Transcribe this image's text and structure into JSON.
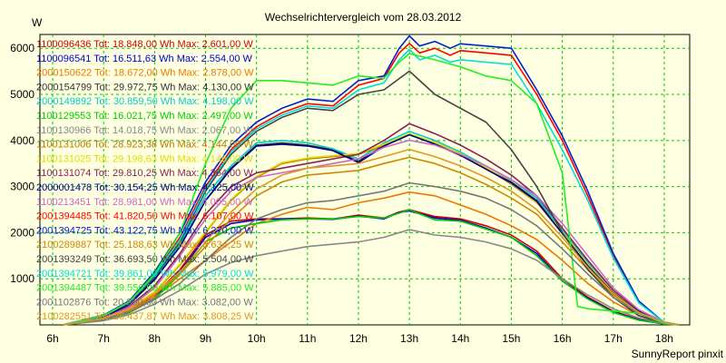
{
  "chart_data": {
    "type": "line",
    "title": "Wechselrichtervergleich vom 28.03.2012",
    "ylabel": "W",
    "footer": "SunnyReport pinxit",
    "xlim": [
      5.75,
      18.5
    ],
    "ylim": [
      0,
      6300
    ],
    "x_ticks": [
      6,
      7,
      8,
      9,
      10,
      11,
      12,
      13,
      14,
      15,
      16,
      17,
      18
    ],
    "x_tick_labels": [
      "6h",
      "7h",
      "8h",
      "9h",
      "10h",
      "11h",
      "12h",
      "13h",
      "14h",
      "15h",
      "16h",
      "17h",
      "18h"
    ],
    "y_ticks": [
      1000,
      2000,
      3000,
      4000,
      5000,
      6000
    ],
    "y_tick_labels": [
      "1000",
      "2000",
      "3000",
      "4000",
      "5000",
      "6000"
    ],
    "grid": true,
    "legend": "left",
    "series": [
      {
        "name": "1100096436 Tot: 18.848,00 Wh Max: 2.601,00 W",
        "color": "#cc0000",
        "x": [
          6.2,
          7,
          7.5,
          8,
          8.5,
          9,
          9.5,
          10,
          10.5,
          11,
          11.5,
          12,
          12.5,
          12.8,
          13,
          13.5,
          14,
          14.5,
          15,
          15.5,
          16,
          16.5,
          17,
          17.5,
          18,
          18.3
        ],
        "y": [
          0,
          120,
          300,
          650,
          1200,
          1950,
          2250,
          2300,
          2300,
          2320,
          2300,
          2380,
          2320,
          2450,
          2500,
          2350,
          2300,
          2150,
          1950,
          1600,
          1000,
          600,
          300,
          120,
          20,
          0
        ]
      },
      {
        "name": "1100096541 Tot: 16.511,63 Wh Max: 2.554,00 W",
        "color": "#0000cc",
        "x": [
          6.2,
          7,
          7.5,
          8,
          8.5,
          9,
          9.5,
          10,
          10.5,
          11,
          11.5,
          12,
          12.5,
          12.8,
          13,
          13.5,
          14,
          14.5,
          15,
          15.5,
          16,
          16.5,
          17,
          17.5,
          18,
          18.3
        ],
        "y": [
          0,
          110,
          280,
          600,
          1150,
          1900,
          2200,
          2280,
          2300,
          2300,
          2290,
          2360,
          2300,
          2440,
          2470,
          2320,
          2270,
          2100,
          1900,
          1550,
          950,
          580,
          280,
          110,
          20,
          0
        ]
      },
      {
        "name": "2000150622 Tot: 18.672,00 Wh Max: 2.878,00 W",
        "color": "#ee7700",
        "x": [
          6.2,
          7,
          7.5,
          8,
          8.5,
          9,
          9.5,
          10,
          10.5,
          11,
          11.5,
          12,
          12.5,
          13,
          13.5,
          14,
          14.5,
          15,
          15.5,
          16,
          16.5,
          17,
          17.5,
          18,
          18.3
        ],
        "y": [
          0,
          120,
          300,
          600,
          1000,
          1400,
          1800,
          2200,
          2400,
          2550,
          2500,
          2650,
          2750,
          2880,
          2800,
          2600,
          2400,
          2150,
          1850,
          1400,
          900,
          500,
          200,
          40,
          0
        ]
      },
      {
        "name": "2000154799 Tot: 29.972,75 Wh Max: 4.130,00 W",
        "color": "#333333",
        "x": [
          6.2,
          7,
          7.5,
          8,
          8.5,
          9,
          9.5,
          10,
          10.5,
          11,
          11.5,
          12,
          12.5,
          13,
          13.5,
          14,
          14.5,
          15,
          15.5,
          16,
          16.5,
          17,
          17.5,
          18,
          18.3
        ],
        "y": [
          0,
          180,
          450,
          1000,
          1700,
          2700,
          3400,
          3900,
          3950,
          3900,
          3800,
          3550,
          3900,
          4130,
          3950,
          3700,
          3400,
          3100,
          2700,
          2000,
          1300,
          700,
          300,
          50,
          0
        ]
      },
      {
        "name": "2000149892 Tot: 30.859,50 Wh Max: 4.198,00 W",
        "color": "#00cccc",
        "x": [
          6.2,
          7,
          7.5,
          8,
          8.5,
          9,
          9.5,
          10,
          10.5,
          11,
          11.5,
          12,
          12.5,
          13,
          13.5,
          14,
          14.5,
          15,
          15.5,
          16,
          16.5,
          17,
          17.5,
          18,
          18.3
        ],
        "y": [
          0,
          190,
          480,
          1050,
          1750,
          2800,
          3450,
          3950,
          4000,
          3950,
          3820,
          3600,
          3950,
          4198,
          4000,
          3750,
          3450,
          3150,
          2750,
          2050,
          1350,
          720,
          310,
          60,
          0
        ]
      },
      {
        "name": "1100129553 Tot: 16.021,75 Wh Max: 2.497,00 W",
        "color": "#00cc00",
        "x": [
          6.2,
          7,
          7.5,
          8,
          8.5,
          9,
          9.5,
          10,
          10.5,
          11,
          11.5,
          12,
          12.5,
          13,
          13.5,
          14,
          14.5,
          15,
          15.5,
          16,
          16.5,
          17,
          17.5,
          18,
          18.3
        ],
        "y": [
          0,
          100,
          260,
          560,
          1100,
          1800,
          2100,
          2200,
          2280,
          2300,
          2300,
          2350,
          2320,
          2497,
          2280,
          2250,
          2080,
          1900,
          1500,
          950,
          560,
          270,
          100,
          20,
          0
        ]
      },
      {
        "name": "1100130966 Tot: 14.018,75 Wh Max: 2.067,00 W",
        "color": "#888888",
        "x": [
          6.2,
          7,
          7.5,
          8,
          8.5,
          9,
          9.5,
          10,
          10.5,
          11,
          11.5,
          12,
          12.5,
          13,
          13.5,
          14,
          14.5,
          15,
          15.5,
          16,
          16.5,
          17,
          17.5,
          18,
          18.3
        ],
        "y": [
          0,
          90,
          220,
          450,
          750,
          1100,
          1350,
          1500,
          1600,
          1700,
          1750,
          1800,
          1900,
          2067,
          1950,
          1900,
          1800,
          1650,
          1400,
          1000,
          650,
          350,
          150,
          30,
          0
        ]
      },
      {
        "name": "1100131006 Tot: 28.923,38 Wh Max: 4.144,00 W",
        "color": "#bb7700",
        "x": [
          6.2,
          7,
          7.5,
          8,
          8.5,
          9,
          9.5,
          10,
          10.5,
          11,
          11.5,
          12,
          12.5,
          13,
          13.5,
          14,
          14.5,
          15,
          15.5,
          16,
          16.5,
          17,
          17.5,
          18,
          18.3
        ],
        "y": [
          0,
          150,
          350,
          700,
          1300,
          2000,
          2700,
          3200,
          3500,
          3600,
          3650,
          3700,
          3900,
          4144,
          3950,
          3700,
          3400,
          3050,
          2650,
          2000,
          1300,
          700,
          280,
          50,
          0
        ]
      },
      {
        "name": "1100131025 Tot: 29.198,63 Wh Max: 4.146,00 W",
        "color": "#dddd00",
        "x": [
          6.2,
          7,
          7.5,
          8,
          8.5,
          9,
          9.5,
          10,
          10.5,
          11,
          11.5,
          12,
          12.5,
          13,
          13.5,
          14,
          14.5,
          15,
          15.5,
          16,
          16.5,
          17,
          17.5,
          18,
          18.3
        ],
        "y": [
          0,
          150,
          360,
          720,
          1320,
          2020,
          2720,
          3220,
          3520,
          3620,
          3670,
          3720,
          3920,
          4146,
          3960,
          3720,
          3420,
          3070,
          2660,
          2010,
          1310,
          710,
          290,
          50,
          0
        ]
      },
      {
        "name": "1100131074 Tot: 29.810,25 Wh Max: 4.364,00 W",
        "color": "#882255",
        "x": [
          6.2,
          7,
          7.5,
          8,
          8.5,
          9,
          9.5,
          10,
          10.5,
          11,
          11.5,
          12,
          12.5,
          13,
          13.5,
          14,
          14.5,
          15,
          15.5,
          16,
          16.5,
          17,
          17.5,
          18,
          18.3
        ],
        "y": [
          0,
          160,
          400,
          850,
          1550,
          2400,
          3000,
          3300,
          3400,
          3500,
          3600,
          3700,
          4000,
          4364,
          4150,
          3900,
          3600,
          3250,
          2800,
          2100,
          1400,
          750,
          320,
          60,
          0
        ]
      },
      {
        "name": "2000001478 Tot: 30.154,25 Wh Max: 4.125,00 W",
        "color": "#000088",
        "x": [
          6.2,
          7,
          7.5,
          8,
          8.5,
          9,
          9.5,
          10,
          10.5,
          11,
          11.5,
          12,
          12.5,
          13,
          13.5,
          14,
          14.5,
          15,
          15.5,
          16,
          16.5,
          17,
          17.5,
          18,
          18.3
        ],
        "y": [
          0,
          180,
          440,
          980,
          1700,
          2700,
          3380,
          3880,
          3920,
          3880,
          3780,
          3520,
          3880,
          4125,
          3920,
          3680,
          3380,
          3080,
          2680,
          1980,
          1280,
          690,
          290,
          50,
          0
        ]
      },
      {
        "name": "1100213451 Tot: 28.981,00 Wh Max: 4.005,00 W",
        "color": "#cc66cc",
        "x": [
          6.2,
          7,
          7.5,
          8,
          8.5,
          9,
          9.5,
          10,
          10.5,
          11,
          11.5,
          12,
          12.5,
          13,
          13.5,
          14,
          14.5,
          15,
          15.5,
          16,
          16.5,
          17,
          17.5,
          18,
          18.3
        ],
        "y": [
          0,
          150,
          380,
          800,
          1500,
          2300,
          2900,
          3200,
          3300,
          3400,
          3500,
          3600,
          3850,
          4005,
          3900,
          3700,
          3450,
          3150,
          2800,
          2200,
          1500,
          800,
          330,
          60,
          0
        ]
      },
      {
        "name": "2001394485 Tot: 41.820,50 Wh Max: 6.107,00 W",
        "color": "#ff0000",
        "x": [
          6.2,
          7,
          7.5,
          8,
          8.5,
          9,
          9.5,
          10,
          10.5,
          11,
          11.5,
          12,
          12.5,
          12.8,
          13,
          13.2,
          13.5,
          13.8,
          14,
          14.5,
          15,
          15.5,
          16,
          16.5,
          17,
          17.5,
          18,
          18.3
        ],
        "y": [
          0,
          200,
          500,
          1100,
          1900,
          3000,
          3800,
          4300,
          4600,
          4800,
          4750,
          5200,
          5350,
          5900,
          6107,
          5900,
          6000,
          5850,
          5950,
          5900,
          5850,
          5000,
          4000,
          2800,
          1500,
          500,
          50,
          0
        ]
      },
      {
        "name": "2001394725 Tot: 43.122,75 Wh Max: 6.270,00 W",
        "color": "#0022cc",
        "x": [
          6.2,
          7,
          7.5,
          8,
          8.5,
          9,
          9.5,
          10,
          10.5,
          11,
          11.5,
          12,
          12.5,
          12.8,
          13,
          13.2,
          13.5,
          13.8,
          14,
          14.5,
          15,
          15.5,
          16,
          16.5,
          17,
          17.5,
          18,
          18.3
        ],
        "y": [
          0,
          210,
          520,
          1150,
          2000,
          3100,
          3900,
          4400,
          4700,
          4900,
          4850,
          5300,
          5400,
          6000,
          6270,
          6050,
          6150,
          6000,
          6100,
          6050,
          6000,
          5100,
          4100,
          2900,
          1550,
          520,
          50,
          0
        ]
      },
      {
        "name": "2100289887 Tot: 25.188,63 Wh Max: 3.634,25 W",
        "color": "#cc8800",
        "x": [
          6.2,
          7,
          7.5,
          8,
          8.5,
          9,
          9.5,
          10,
          10.5,
          11,
          11.5,
          12,
          12.5,
          13,
          13.5,
          14,
          14.5,
          15,
          15.5,
          16,
          16.5,
          17,
          17.5,
          18,
          18.3
        ],
        "y": [
          0,
          140,
          330,
          650,
          1100,
          1700,
          2300,
          2800,
          3100,
          3250,
          3300,
          3350,
          3500,
          3634,
          3500,
          3300,
          3050,
          2750,
          2400,
          1800,
          1200,
          650,
          260,
          50,
          0
        ]
      },
      {
        "name": "2001393249 Tot: 36.693,50 Wh Max: 5.504,00 W",
        "color": "#444444",
        "x": [
          6.2,
          7,
          7.5,
          8,
          8.5,
          9,
          9.5,
          10,
          10.5,
          11,
          11.5,
          12,
          12.5,
          13,
          13.5,
          14,
          14.5,
          15,
          15.5,
          16,
          16.5,
          17,
          17.5,
          18,
          18.3
        ],
        "y": [
          0,
          190,
          480,
          1050,
          1800,
          2900,
          3700,
          4200,
          4500,
          4700,
          4650,
          5000,
          5100,
          5504,
          5000,
          4700,
          4400,
          3800,
          3000,
          2000,
          1200,
          600,
          200,
          30,
          0
        ]
      },
      {
        "name": "2001394721 Tot: 39.861,00 Wh Max: 5.979,00 W",
        "color": "#00dddd",
        "x": [
          6.2,
          7,
          7.5,
          8,
          8.5,
          9,
          9.5,
          10,
          10.5,
          11,
          11.5,
          12,
          12.5,
          12.8,
          13,
          13.2,
          13.5,
          13.8,
          14,
          14.5,
          15,
          15.5,
          16,
          16.5,
          17,
          17.5,
          18,
          18.3
        ],
        "y": [
          0,
          195,
          490,
          1080,
          1850,
          2950,
          3750,
          4250,
          4550,
          4750,
          4700,
          5100,
          5250,
          5750,
          5979,
          5750,
          5850,
          5700,
          5750,
          5700,
          5650,
          4800,
          3800,
          2700,
          1450,
          480,
          50,
          0
        ]
      },
      {
        "name": "2001394487 Tot: 39.550,00 Wh Max: 5.885,00 W",
        "color": "#22ee22",
        "x": [
          6.2,
          7,
          7.5,
          8,
          8.5,
          9,
          9.5,
          10,
          10.5,
          11,
          11.5,
          12,
          12.5,
          12.8,
          13,
          13.5,
          14,
          14.5,
          15,
          15.5,
          16,
          16.3,
          16.5,
          17,
          17.5,
          18,
          18.3
        ],
        "y": [
          0,
          200,
          500,
          1100,
          2000,
          3500,
          4700,
          5300,
          5300,
          5250,
          5200,
          5400,
          5350,
          5700,
          5885,
          5750,
          5600,
          5400,
          5300,
          4800,
          3300,
          400,
          350,
          300,
          250,
          30,
          0
        ]
      },
      {
        "name": "2001102876 Tot: 20.950,00 Wh Max: 3.082,00 W",
        "color": "#777777",
        "x": [
          6.2,
          7,
          7.5,
          8,
          8.5,
          9,
          9.5,
          10,
          10.5,
          11,
          11.5,
          12,
          12.5,
          13,
          13.5,
          14,
          14.5,
          15,
          15.5,
          16,
          16.5,
          17,
          17.5,
          18,
          18.3
        ],
        "y": [
          0,
          120,
          280,
          550,
          900,
          1400,
          1900,
          2300,
          2500,
          2650,
          2700,
          2800,
          2900,
          3082,
          3000,
          2900,
          2750,
          2500,
          2150,
          1650,
          1100,
          600,
          250,
          50,
          0
        ]
      },
      {
        "name": "2100282551 Tot: 26.437,87 Wh Max: 3.808,25 W",
        "color": "#dd9922",
        "x": [
          6.2,
          7,
          7.5,
          8,
          8.5,
          9,
          9.5,
          10,
          10.5,
          11,
          11.5,
          12,
          12.5,
          13,
          13.5,
          14,
          14.5,
          15,
          15.5,
          16,
          16.5,
          17,
          17.5,
          18,
          18.3
        ],
        "y": [
          0,
          140,
          340,
          680,
          1150,
          1800,
          2450,
          2950,
          3250,
          3400,
          3450,
          3500,
          3650,
          3808,
          3650,
          3450,
          3200,
          2900,
          2500,
          1900,
          1250,
          680,
          270,
          50,
          0
        ]
      }
    ]
  }
}
